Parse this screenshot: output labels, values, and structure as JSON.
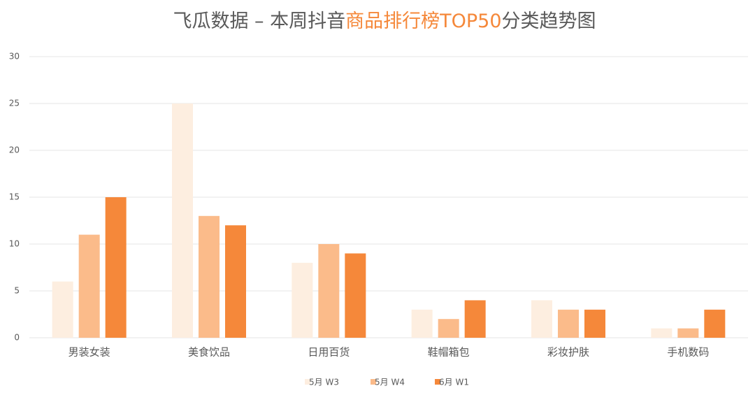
{
  "chart_data": {
    "type": "bar",
    "title": [
      "飞瓜数据 – 本周抖音",
      "商品排行榜TOP50",
      "分类趋势图"
    ],
    "title_colors": [
      "#595959",
      "#f5883a",
      "#595959"
    ],
    "categories": [
      "男装女装",
      "美食饮品",
      "日用百货",
      "鞋帽箱包",
      "彩妆护肤",
      "手机数码"
    ],
    "series": [
      {
        "name": "5月 W3",
        "color": "#fdeee0",
        "values": [
          6,
          25,
          8,
          3,
          4,
          1
        ]
      },
      {
        "name": "5月 W4",
        "color": "#fbbb8a",
        "values": [
          11,
          13,
          10,
          2,
          3,
          1
        ]
      },
      {
        "name": "6月 W1",
        "color": "#f5883a",
        "values": [
          15,
          12,
          9,
          4,
          3,
          3
        ]
      }
    ],
    "ylim": [
      0,
      30
    ],
    "yticks": [
      0,
      5,
      10,
      15,
      20,
      25,
      30
    ],
    "grid": true,
    "legend": "bottom"
  }
}
